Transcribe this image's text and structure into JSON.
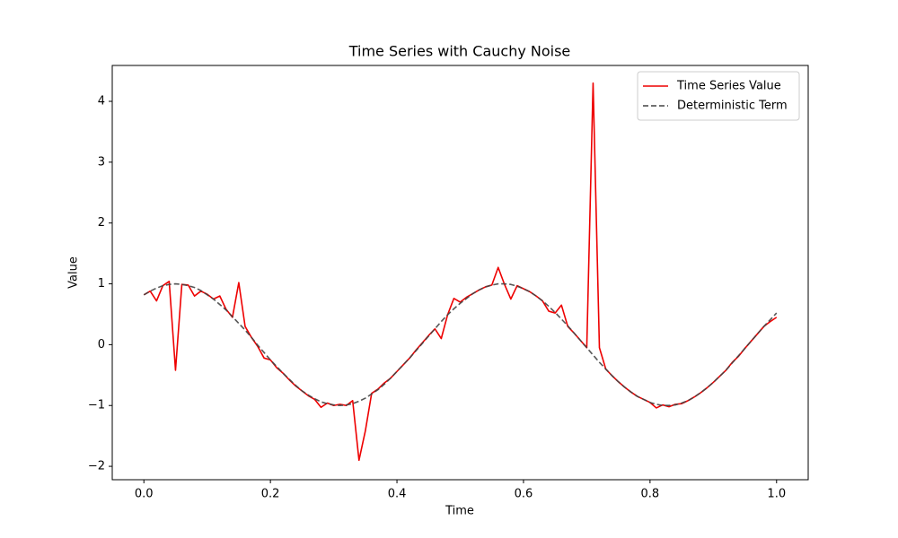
{
  "chart_data": {
    "type": "line",
    "title": "Time Series with Cauchy Noise",
    "x_label": "Time",
    "y_label": "Value",
    "x": [
      0,
      0.01,
      0.02,
      0.03,
      0.04,
      0.05,
      0.06,
      0.07,
      0.08,
      0.09,
      0.1,
      0.11,
      0.12,
      0.13,
      0.14,
      0.15,
      0.16,
      0.17,
      0.18,
      0.19,
      0.2,
      0.21,
      0.22,
      0.23,
      0.24,
      0.25,
      0.26,
      0.27,
      0.28,
      0.29,
      0.3,
      0.31,
      0.32,
      0.33,
      0.34,
      0.35,
      0.36,
      0.37,
      0.38,
      0.39,
      0.4,
      0.41,
      0.42,
      0.43,
      0.44,
      0.45,
      0.46,
      0.47,
      0.48,
      0.49,
      0.5,
      0.51,
      0.52,
      0.53,
      0.54,
      0.55,
      0.56,
      0.57,
      0.58,
      0.59,
      0.6,
      0.61,
      0.62,
      0.63,
      0.64,
      0.65,
      0.66,
      0.67,
      0.68,
      0.69,
      0.7,
      0.71,
      0.72,
      0.73,
      0.74,
      0.75,
      0.76,
      0.77,
      0.78,
      0.79,
      0.8,
      0.81,
      0.82,
      0.83,
      0.84,
      0.85,
      0.86,
      0.87,
      0.88,
      0.89,
      0.9,
      0.91,
      0.92,
      0.93,
      0.94,
      0.95,
      0.96,
      0.97,
      0.98,
      0.99,
      1
    ],
    "series": [
      {
        "name": "Time Series Value",
        "color": "#ee0000",
        "linestyle": "solid",
        "values": [
          0.82,
          0.88,
          0.72,
          0.97,
          1.04,
          -0.42,
          0.99,
          0.98,
          0.8,
          0.88,
          0.83,
          0.75,
          0.8,
          0.58,
          0.45,
          1.02,
          0.3,
          0.12,
          -0.03,
          -0.22,
          -0.25,
          -0.38,
          -0.47,
          -0.58,
          -0.68,
          -0.76,
          -0.84,
          -0.9,
          -1.03,
          -0.96,
          -1,
          -0.98,
          -1,
          -0.92,
          -1.9,
          -1.42,
          -0.8,
          -0.73,
          -0.63,
          -0.55,
          -0.44,
          -0.33,
          -0.22,
          -0.09,
          0.03,
          0.15,
          0.26,
          0.1,
          0.49,
          0.76,
          0.7,
          0.78,
          0.84,
          0.9,
          0.95,
          0.98,
          1.27,
          0.99,
          0.75,
          0.97,
          0.92,
          0.87,
          0.8,
          0.72,
          0.55,
          0.52,
          0.65,
          0.3,
          0.19,
          0.07,
          -0.05,
          4.3,
          -0.05,
          -0.4,
          -0.51,
          -0.61,
          -0.7,
          -0.78,
          -0.85,
          -0.9,
          -0.95,
          -1.04,
          -0.99,
          -1.02,
          -0.98,
          -0.97,
          -0.92,
          -0.86,
          -0.79,
          -0.71,
          -0.62,
          -0.52,
          -0.42,
          -0.29,
          -0.19,
          -0.06,
          0.06,
          0.18,
          0.3,
          0.38,
          0.45
        ]
      },
      {
        "name": "Deterministic Term",
        "color": "#444444",
        "linestyle": "dashed",
        "values": [
          0.82,
          0.88,
          0.93,
          0.97,
          0.99,
          1,
          0.99,
          0.97,
          0.94,
          0.89,
          0.82,
          0.75,
          0.66,
          0.57,
          0.46,
          0.35,
          0.24,
          0.12,
          -0.01,
          -0.13,
          -0.25,
          -0.36,
          -0.47,
          -0.57,
          -0.67,
          -0.76,
          -0.83,
          -0.89,
          -0.94,
          -0.97,
          -0.99,
          -1,
          -0.99,
          -0.97,
          -0.93,
          -0.88,
          -0.81,
          -0.74,
          -0.65,
          -0.55,
          -0.44,
          -0.33,
          -0.22,
          -0.1,
          0.02,
          0.14,
          0.26,
          0.38,
          0.49,
          0.59,
          0.68,
          0.76,
          0.84,
          0.9,
          0.95,
          0.98,
          1,
          1,
          0.99,
          0.96,
          0.92,
          0.87,
          0.8,
          0.72,
          0.63,
          0.53,
          0.42,
          0.31,
          0.19,
          0.07,
          -0.05,
          -0.17,
          -0.29,
          -0.4,
          -0.51,
          -0.61,
          -0.7,
          -0.78,
          -0.85,
          -0.9,
          -0.95,
          -0.98,
          -1,
          -1,
          -0.99,
          -0.96,
          -0.92,
          -0.86,
          -0.79,
          -0.71,
          -0.62,
          -0.52,
          -0.42,
          -0.3,
          -0.18,
          -0.06,
          0.06,
          0.18,
          0.3,
          0.41,
          0.52
        ]
      }
    ],
    "xlim": [
      -0.05,
      1.05
    ],
    "ylim": [
      -2.22,
      4.59
    ],
    "xticks": [
      {
        "value": 0,
        "label": "0.0"
      },
      0.2,
      0.4,
      0.6,
      0.8,
      {
        "value": 1,
        "label": "1.0"
      }
    ],
    "yticks": [
      {
        "value": -2,
        "label": "−2"
      },
      {
        "value": -1,
        "label": "−1"
      },
      0,
      1,
      2,
      3,
      4
    ],
    "grid": false,
    "legend": "upper right"
  }
}
